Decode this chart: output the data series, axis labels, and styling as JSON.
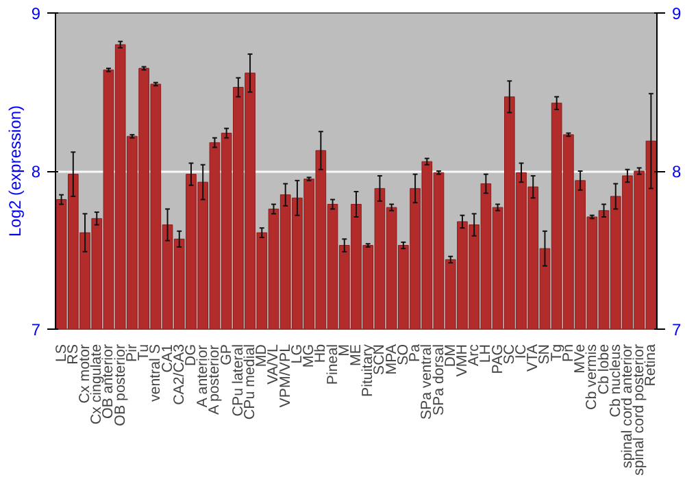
{
  "chart_data": {
    "type": "bar",
    "ylabel": "Log2 (expression)",
    "categories": [
      "LS",
      "RS",
      "Cx motor",
      "Cx cingulate",
      "OB anterior",
      "OB posterior",
      "Pir",
      "Tu",
      "ventral S",
      "CA1",
      "CA2/CA3",
      "DG",
      "A anterior",
      "A posterior",
      "GP",
      "CPu lateral",
      "CPu medial",
      "MD",
      "VA/VL",
      "VPM/VPL",
      "LG",
      "MG",
      "Hb",
      "Pineal",
      "M",
      "ME",
      "Pituitary",
      "SCN",
      "MPA",
      "SO",
      "Pa",
      "SPa ventral",
      "SPa dorsal",
      "DM",
      "VMH",
      "Arc",
      "LH",
      "PAG",
      "SC",
      "IC",
      "VTA",
      "SN",
      "Tg",
      "Pn",
      "MVe",
      "Cb vermis",
      "Cb lobe",
      "Cb nucleus",
      "spinal cord anterior",
      "spinal cord posterior",
      "Retina"
    ],
    "values": [
      7.82,
      7.98,
      7.61,
      7.7,
      8.64,
      8.8,
      8.22,
      8.65,
      8.55,
      7.66,
      7.57,
      7.98,
      7.93,
      8.18,
      8.24,
      8.53,
      8.62,
      7.61,
      7.76,
      7.85,
      7.83,
      7.95,
      8.13,
      7.79,
      7.53,
      7.79,
      7.53,
      7.89,
      7.77,
      7.53,
      7.89,
      8.06,
      7.99,
      7.44,
      7.68,
      7.66,
      7.92,
      7.77,
      8.47,
      7.99,
      7.9,
      7.51,
      8.43,
      8.23,
      7.94,
      7.71,
      7.75,
      7.84,
      7.97,
      8.0,
      8.19
    ],
    "errors": [
      0.03,
      0.14,
      0.12,
      0.04,
      0.01,
      0.02,
      0.01,
      0.01,
      0.01,
      0.1,
      0.05,
      0.07,
      0.11,
      0.03,
      0.03,
      0.06,
      0.12,
      0.03,
      0.03,
      0.07,
      0.11,
      0.01,
      0.12,
      0.03,
      0.04,
      0.08,
      0.01,
      0.08,
      0.02,
      0.02,
      0.09,
      0.02,
      0.01,
      0.02,
      0.04,
      0.07,
      0.06,
      0.02,
      0.1,
      0.06,
      0.07,
      0.11,
      0.04,
      0.01,
      0.06,
      0.01,
      0.04,
      0.08,
      0.04,
      0.02,
      0.3
    ],
    "color": "#b22c2c",
    "ylim": [
      7,
      9
    ],
    "yticks": [
      7,
      8,
      9
    ],
    "y2lim": [
      7,
      9
    ],
    "y2ticks": [
      7,
      8,
      9
    ],
    "grid": "y"
  }
}
